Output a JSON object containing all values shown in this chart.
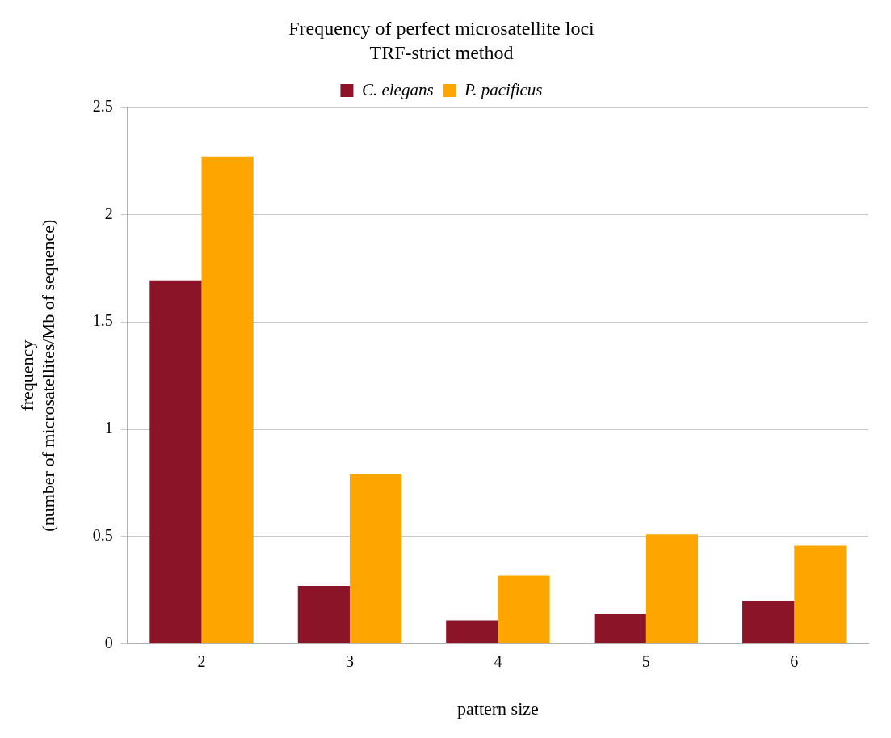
{
  "chart_data": {
    "type": "bar",
    "title": "Frequency of perfect microsatellite loci",
    "subtitle": "TRF-strict method",
    "xlabel": "pattern size",
    "ylabel": "frequency\n(number of microsatellites/Mb of sequence)",
    "categories": [
      "2",
      "3",
      "4",
      "5",
      "6"
    ],
    "series": [
      {
        "name": "C. elegans",
        "color": "#8b1429",
        "values": [
          1.69,
          0.27,
          0.11,
          0.14,
          0.2
        ]
      },
      {
        "name": "P. pacificus",
        "color": "#ffa500",
        "values": [
          2.27,
          0.79,
          0.32,
          0.51,
          0.46
        ]
      }
    ],
    "ylim": [
      0,
      2.5
    ],
    "yticks": [
      0,
      0.5,
      1,
      1.5,
      2,
      2.5
    ],
    "grid": "y",
    "legend": "top"
  }
}
